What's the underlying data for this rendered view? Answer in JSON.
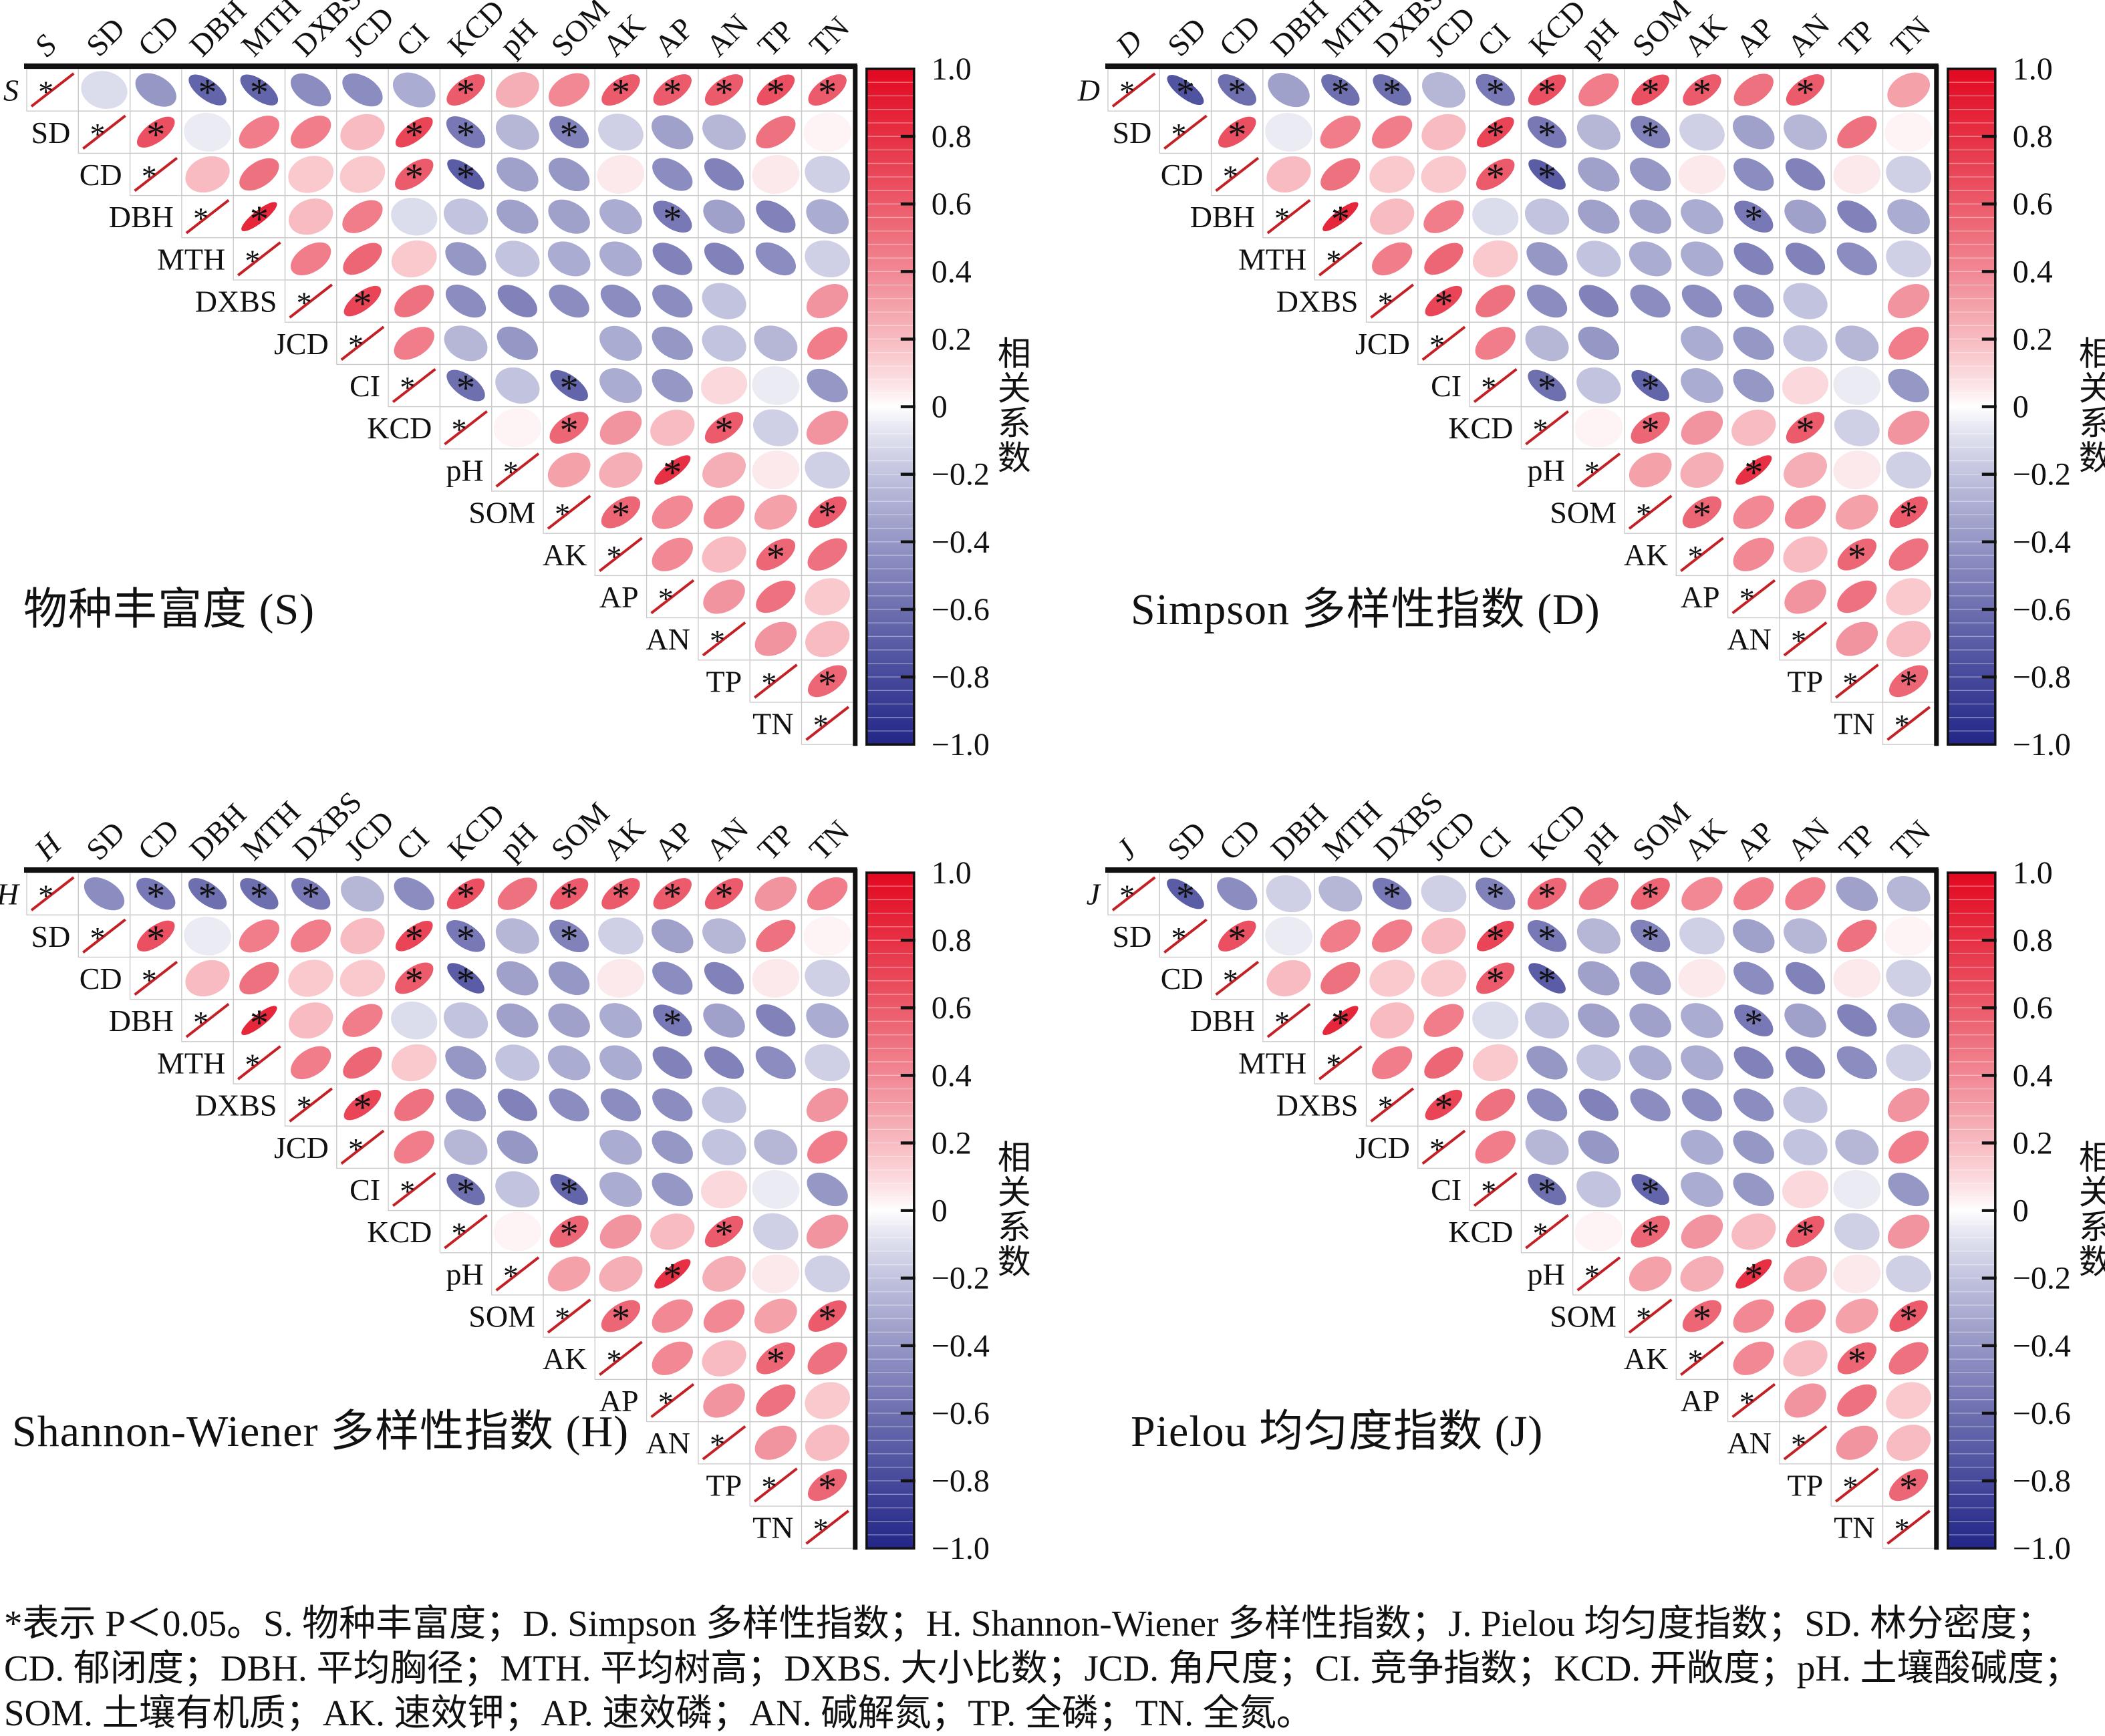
{
  "chart_data": {
    "type": "heatmap",
    "subtype": "correlation-ellipse-matrix",
    "description": "Four upper-triangular correlation ellipse matrices (corrplot style). Red ellipses tilted up-right = positive correlation, blue tilted down-right = negative. Asterisk marks P<0.05.",
    "variables": [
      "SD",
      "CD",
      "DBH",
      "MTH",
      "DXBS",
      "JCD",
      "CI",
      "KCD",
      "pH",
      "SOM",
      "AK",
      "AP",
      "AN",
      "TP",
      "TN"
    ],
    "panels": [
      {
        "key": "S",
        "title": "物种丰富度 (S)",
        "index_row": {
          "values": [
            -0.1,
            -0.4,
            -0.65,
            -0.65,
            -0.45,
            -0.45,
            -0.3,
            0.6,
            0.25,
            0.4,
            0.6,
            0.6,
            0.6,
            0.65,
            0.6
          ],
          "sig": [
            0,
            0,
            1,
            1,
            0,
            0,
            0,
            1,
            0,
            0,
            1,
            1,
            1,
            1,
            1
          ]
        }
      },
      {
        "key": "D",
        "title": "Simpson 多样性指数 (D)",
        "index_row": {
          "values": [
            -0.75,
            -0.6,
            -0.35,
            -0.6,
            -0.6,
            -0.25,
            -0.55,
            0.65,
            0.45,
            0.65,
            0.6,
            0.5,
            0.6,
            0.0,
            0.3
          ],
          "sig": [
            1,
            1,
            0,
            1,
            1,
            0,
            1,
            1,
            0,
            1,
            1,
            0,
            1,
            0,
            0
          ]
        }
      },
      {
        "key": "H",
        "title": "Shannon-Wiener 多样性指数 (H)",
        "index_row": {
          "values": [
            -0.45,
            -0.55,
            -0.6,
            -0.6,
            -0.55,
            -0.25,
            -0.45,
            0.65,
            0.5,
            0.6,
            0.6,
            0.6,
            0.6,
            0.35,
            0.45
          ],
          "sig": [
            0,
            1,
            1,
            1,
            1,
            0,
            0,
            1,
            0,
            1,
            1,
            1,
            1,
            0,
            0
          ]
        }
      },
      {
        "key": "J",
        "title": "Pielou 均匀度指数 (J)",
        "index_row": {
          "values": [
            -0.7,
            -0.45,
            -0.15,
            -0.25,
            -0.55,
            -0.15,
            -0.5,
            0.55,
            0.5,
            0.55,
            0.4,
            0.45,
            0.45,
            -0.35,
            -0.25
          ],
          "sig": [
            1,
            0,
            0,
            0,
            1,
            0,
            1,
            1,
            0,
            1,
            0,
            0,
            0,
            0,
            0
          ]
        }
      }
    ],
    "shared_matrix": {
      "note": "Pairwise correlations among SD..TN, identical in all four panels; row i lists correlations with the variables after it.",
      "rows": [
        {
          "var": "SD",
          "values": [
            0.65,
            -0.05,
            0.45,
            0.45,
            0.2,
            0.7,
            -0.55,
            -0.25,
            -0.5,
            -0.15,
            -0.35,
            -0.25,
            0.5,
            0.02
          ],
          "sig": [
            1,
            0,
            0,
            0,
            0,
            1,
            1,
            0,
            1,
            0,
            0,
            0,
            0,
            0
          ]
        },
        {
          "var": "CD",
          "values": [
            0.2,
            0.5,
            0.15,
            0.15,
            0.6,
            -0.7,
            -0.35,
            -0.4,
            0.05,
            -0.45,
            -0.5,
            0.05,
            -0.15
          ],
          "sig": [
            0,
            0,
            0,
            0,
            1,
            1,
            0,
            0,
            0,
            0,
            0,
            0,
            0
          ]
        },
        {
          "var": "DBH",
          "values": [
            0.85,
            0.2,
            0.45,
            -0.1,
            -0.2,
            -0.35,
            -0.35,
            -0.3,
            -0.55,
            -0.35,
            -0.5,
            -0.3
          ],
          "sig": [
            1,
            0,
            0,
            0,
            0,
            0,
            0,
            0,
            1,
            0,
            0,
            0
          ]
        },
        {
          "var": "MTH",
          "values": [
            0.45,
            0.55,
            0.15,
            -0.4,
            -0.2,
            -0.3,
            -0.3,
            -0.5,
            -0.5,
            -0.45,
            -0.15
          ],
          "sig": [
            0,
            0,
            0,
            0,
            0,
            0,
            0,
            0,
            0,
            0,
            0
          ]
        },
        {
          "var": "DXBS",
          "values": [
            0.7,
            0.5,
            -0.45,
            -0.5,
            -0.45,
            -0.45,
            -0.45,
            -0.2,
            0.0,
            0.35
          ],
          "sig": [
            1,
            0,
            0,
            0,
            0,
            0,
            0,
            0,
            0,
            0
          ]
        },
        {
          "var": "JCD",
          "values": [
            0.45,
            -0.25,
            -0.4,
            0.0,
            -0.3,
            -0.4,
            -0.2,
            -0.25,
            0.45
          ],
          "sig": [
            0,
            0,
            0,
            0,
            0,
            0,
            0,
            0,
            0
          ]
        },
        {
          "var": "CI",
          "values": [
            -0.6,
            -0.2,
            -0.65,
            -0.3,
            -0.4,
            0.1,
            -0.05,
            -0.4
          ],
          "sig": [
            1,
            0,
            1,
            0,
            0,
            0,
            0,
            0
          ]
        },
        {
          "var": "KCD",
          "values": [
            0.02,
            0.55,
            0.35,
            0.2,
            0.6,
            -0.15,
            0.35
          ],
          "sig": [
            0,
            1,
            0,
            0,
            1,
            0,
            0
          ]
        },
        {
          "var": "pH",
          "values": [
            0.3,
            0.25,
            0.8,
            0.25,
            0.05,
            -0.15
          ],
          "sig": [
            0,
            0,
            1,
            0,
            0,
            0
          ]
        },
        {
          "var": "SOM",
          "values": [
            0.55,
            0.4,
            0.4,
            0.3,
            0.6
          ],
          "sig": [
            1,
            0,
            0,
            0,
            1
          ]
        },
        {
          "var": "AK",
          "values": [
            0.4,
            0.2,
            0.55,
            0.5
          ],
          "sig": [
            0,
            0,
            1,
            0
          ]
        },
        {
          "var": "AP",
          "values": [
            0.35,
            0.5,
            0.15
          ],
          "sig": [
            0,
            0,
            0
          ]
        },
        {
          "var": "AN",
          "values": [
            0.35,
            0.2
          ],
          "sig": [
            0,
            0
          ]
        },
        {
          "var": "TP",
          "values": [
            0.55
          ],
          "sig": [
            1
          ]
        }
      ]
    },
    "colorbar": {
      "label": "相关系数",
      "tick_labels": [
        "1.0",
        "0.8",
        "0.6",
        "0.4",
        "0.2",
        "0",
        "−0.2",
        "−0.4",
        "−0.6",
        "−0.8",
        "−1.0"
      ],
      "range": [
        -1,
        1
      ],
      "positive_color": "#e20820",
      "negative_color": "#232687"
    },
    "significance_marker": "*",
    "legend_position": "right"
  },
  "caption": {
    "line1": "*表示 P＜0.05。S. 物种丰富度；D. Simpson 多样性指数；H. Shannon-Wiener 多样性指数；J. Pielou 均匀度指数；SD. 林分密度；",
    "line2": "CD. 郁闭度；DBH. 平均胸径；MTH. 平均树高；DXBS. 大小比数；JCD. 角尺度；CI. 竞争指数；KCD. 开敞度；pH. 土壤酸碱度；",
    "line3": "SOM. 土壤有机质；AK. 速效钾；AP. 速效磷；AN. 碱解氮；TP. 全磷；TN. 全氮。"
  }
}
